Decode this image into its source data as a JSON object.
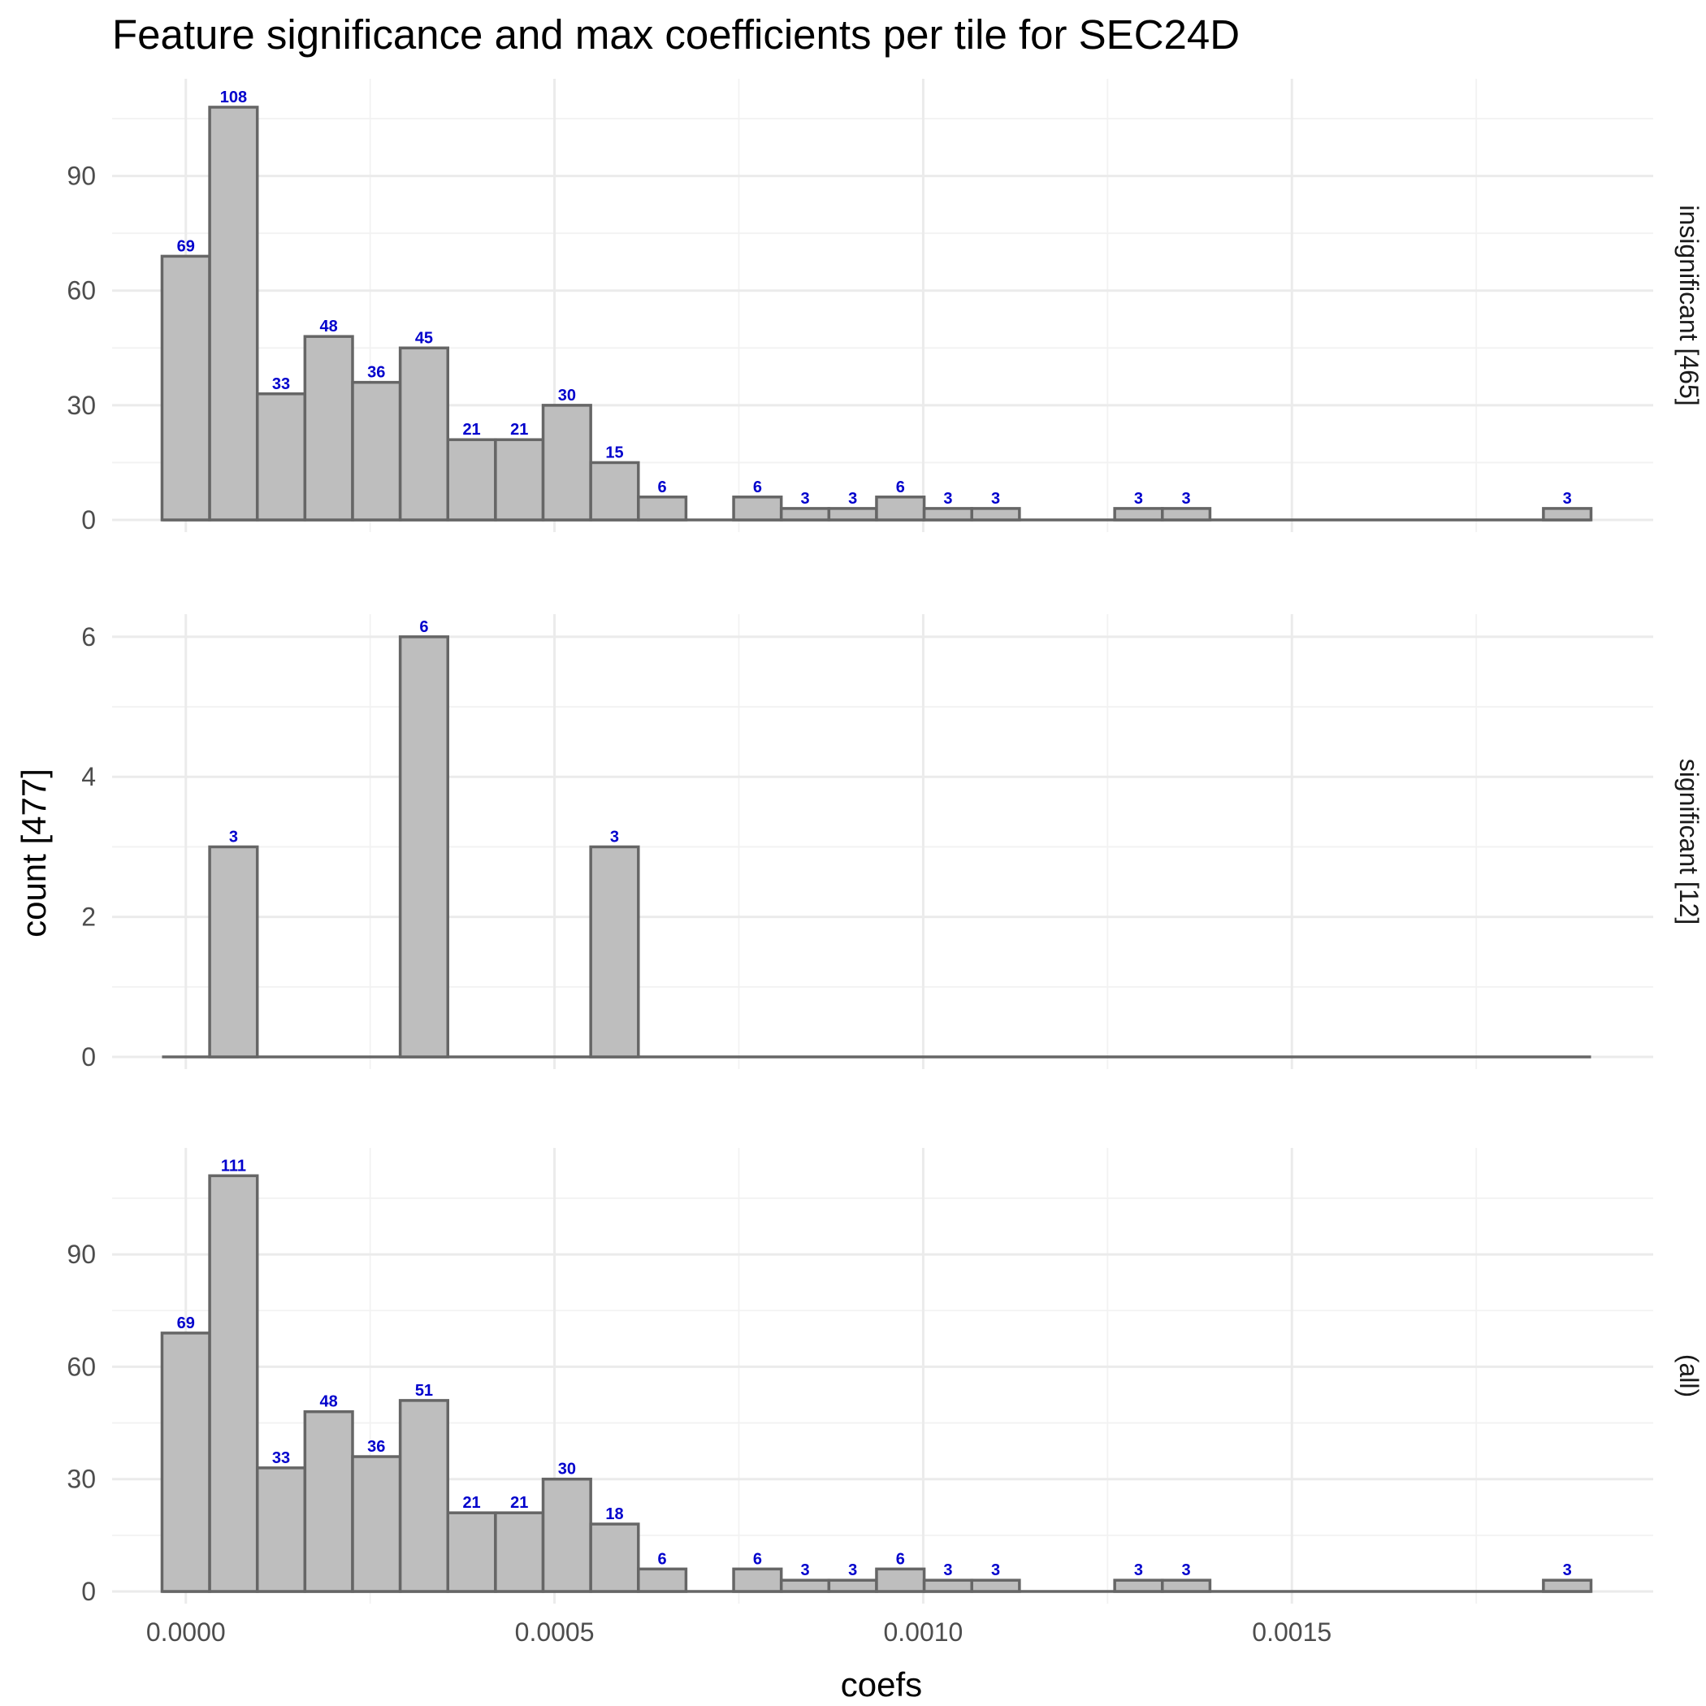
{
  "chart_data": {
    "type": "bar",
    "title": "Feature significance and max coefficients per tile for SEC24D",
    "xlabel": "coefs",
    "ylabel": "count [477]",
    "x_ticks": [
      {
        "value": 0.0,
        "label": "0.0000"
      },
      {
        "value": 0.0005,
        "label": "0.0005"
      },
      {
        "value": 0.001,
        "label": "0.0010"
      },
      {
        "value": 0.0015,
        "label": "0.0015"
      }
    ],
    "xlim": [
      -0.0001,
      0.00199
    ],
    "grid": true,
    "bin_width": 6.46e-05,
    "first_bin_center": 0.0,
    "panels": [
      {
        "strip": "insignificant [465]",
        "ylim": [
          0,
          115
        ],
        "y_ticks": [
          0,
          30,
          60,
          90
        ],
        "counts": [
          69,
          108,
          33,
          48,
          36,
          45,
          21,
          21,
          30,
          15,
          6,
          0,
          6,
          3,
          3,
          6,
          3,
          3,
          0,
          0,
          3,
          3,
          0,
          0,
          0,
          0,
          0,
          0,
          0,
          3
        ]
      },
      {
        "strip": "significant [12]",
        "ylim": [
          0,
          6.3
        ],
        "y_ticks": [
          0,
          2,
          4,
          6
        ],
        "counts": [
          0,
          3,
          0,
          0,
          0,
          6,
          0,
          0,
          0,
          3,
          0,
          0,
          0,
          0,
          0,
          0,
          0,
          0,
          0,
          0,
          0,
          0,
          0,
          0,
          0,
          0,
          0,
          0,
          0,
          0
        ]
      },
      {
        "strip": "(all)",
        "ylim": [
          0,
          118
        ],
        "y_ticks": [
          0,
          30,
          60,
          90
        ],
        "counts": [
          69,
          111,
          33,
          48,
          36,
          51,
          21,
          21,
          30,
          18,
          6,
          0,
          6,
          3,
          3,
          6,
          3,
          3,
          0,
          0,
          3,
          3,
          0,
          0,
          0,
          0,
          0,
          0,
          0,
          3
        ]
      }
    ]
  }
}
